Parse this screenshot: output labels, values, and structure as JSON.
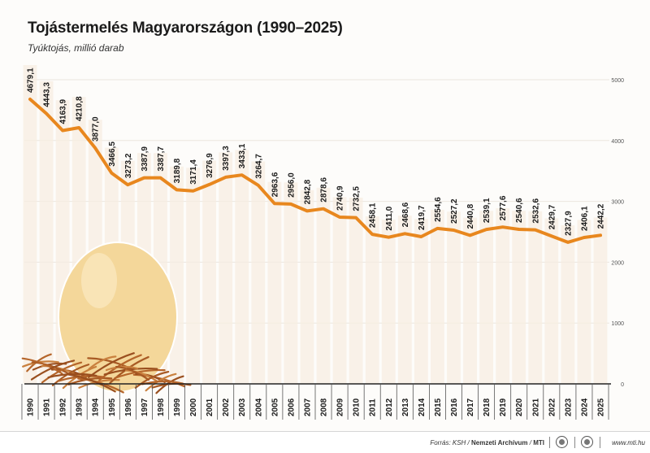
{
  "header": {
    "title": "Tojástermelés Magyarországon (1990–2025)",
    "subtitle": "Tyúktojás, millió darab"
  },
  "footer": {
    "source_label": "Forrás: KSH /",
    "source_archive": "Nemzeti Archívum",
    "source_sep": "/",
    "source_agency": "MTI",
    "website": "www.mti.hu",
    "logo_icons": [
      "mtva-logo-icon",
      "mti-logo-icon"
    ]
  },
  "colors": {
    "line": "#e8871e",
    "bars": "#f7eee1",
    "egg": "#f4d79a",
    "nest": "#b5652a"
  },
  "chart_data": {
    "type": "line",
    "title": "Tojástermelés Magyarországon (1990–2025)",
    "subtitle": "Tyúktojás, millió darab",
    "x": [
      "1990",
      "1991",
      "1992",
      "1993",
      "1994",
      "1995",
      "1996",
      "1997",
      "1998",
      "1999",
      "2000",
      "2001",
      "2002",
      "2003",
      "2004",
      "2005",
      "2006",
      "2007",
      "2008",
      "2009",
      "2010",
      "2011",
      "2012",
      "2013",
      "2014",
      "2015",
      "2016",
      "2017",
      "2018",
      "2019",
      "2020",
      "2021",
      "2022",
      "2023",
      "2024",
      "2025"
    ],
    "series": [
      {
        "values": [
          4679.1,
          4443.3,
          4163.9,
          4210.8,
          3877.0,
          3466.5,
          3273.2,
          3387.9,
          3387.7,
          3189.8,
          3171.4,
          3276.9,
          3397.3,
          3433.1,
          3264.7,
          2963.6,
          2956.0,
          2842.8,
          2878.6,
          2740.9,
          2732.5,
          2458.1,
          2411.0,
          2468.6,
          2419.7,
          2554.6,
          2527.2,
          2440.8,
          2539.1,
          2577.6,
          2540.6,
          2532.6,
          2429.7,
          2327.9,
          2406.1,
          2442.2
        ],
        "labels": [
          "4679,1",
          "4443,3",
          "4163,9",
          "4210,8",
          "3877,0",
          "3466,5",
          "3273,2",
          "3387,9",
          "3387,7",
          "3189,8",
          "3171,4",
          "3276,9",
          "3397,3",
          "3433,1",
          "3264,7",
          "2963,6",
          "2956,0",
          "2842,8",
          "2878,6",
          "2740,9",
          "2732,5",
          "2458,1",
          "2411,0",
          "2468,6",
          "2419,7",
          "2554,6",
          "2527,2",
          "2440,8",
          "2539,1",
          "2577,6",
          "2540,6",
          "2532,6",
          "2429,7",
          "2327,9",
          "2406,1",
          "2442,2"
        ]
      }
    ],
    "ylim": [
      0,
      5000
    ],
    "yticks": [
      "0",
      "1000",
      "2000",
      "3000",
      "4000",
      "5000"
    ],
    "y_axis_side": "right",
    "grid": true,
    "xlabel": "",
    "ylabel": ""
  }
}
